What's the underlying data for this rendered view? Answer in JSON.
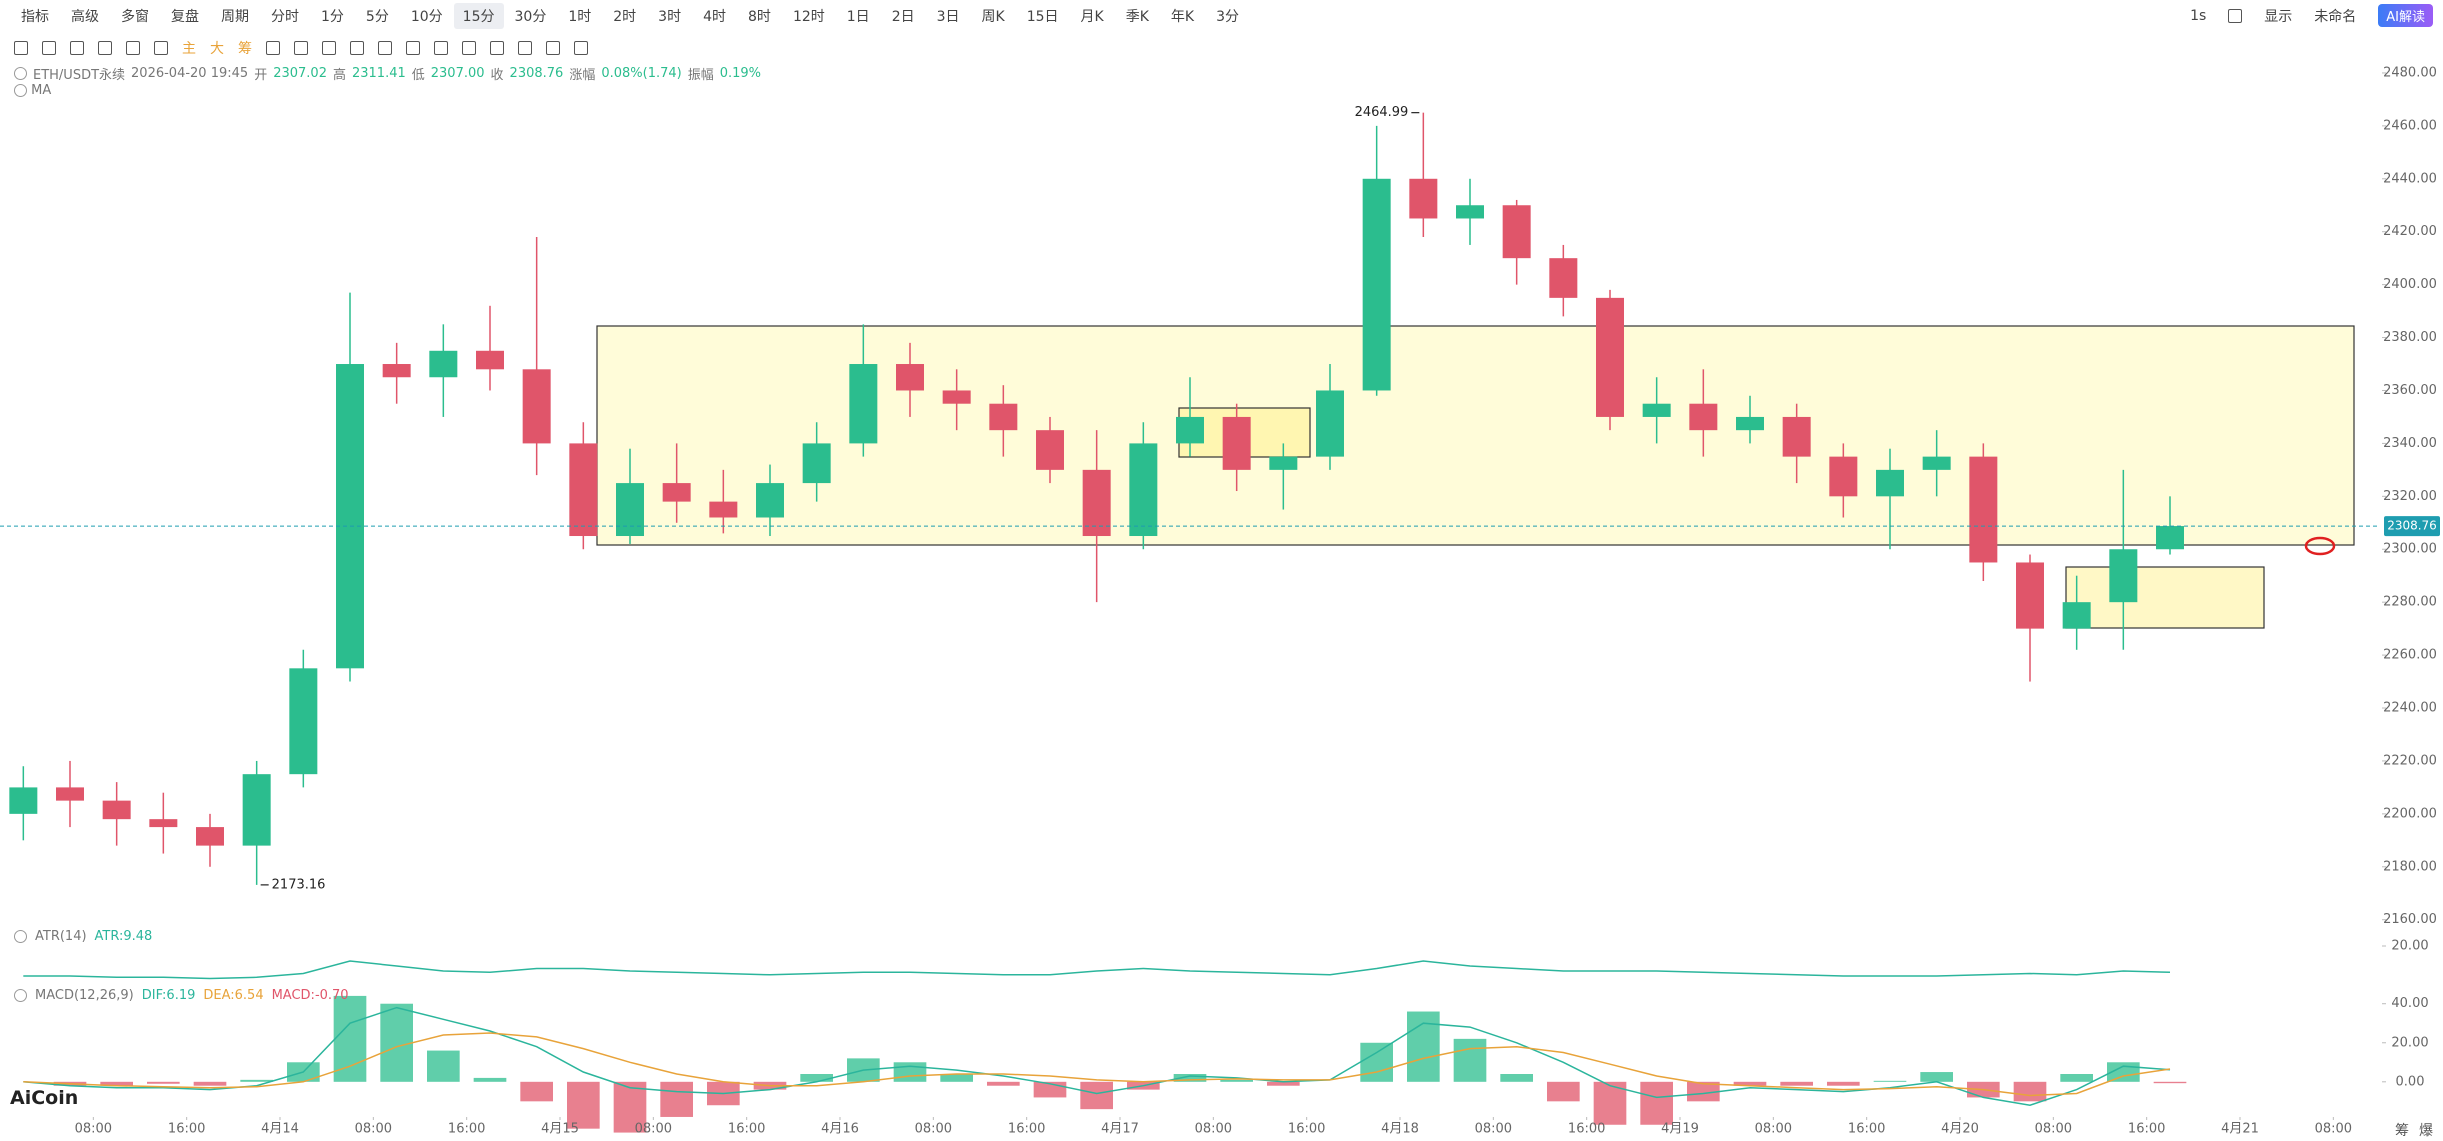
{
  "toolbar": {
    "left": [
      "指标",
      "高级",
      "多窗",
      "复盘"
    ],
    "period_label": "周期",
    "periods": [
      "分时",
      "1分",
      "5分",
      "10分",
      "15分",
      "30分",
      "1时",
      "2时",
      "3时",
      "4时",
      "8时",
      "12时",
      "1日",
      "2日",
      "3日",
      "周K",
      "15日",
      "月K",
      "季K",
      "年K",
      "3分"
    ],
    "active_period_index": 4,
    "right": [
      "1s",
      "显示"
    ],
    "workspace": "未命名",
    "ai_button": "AI解读"
  },
  "drawing_bar": {
    "marks": [
      "主",
      "大",
      "筹"
    ]
  },
  "info": {
    "symbol": "ETH/USDT永续",
    "time": "2026-04-20 19:45",
    "fields": [
      {
        "label": "开",
        "value": "2307.02"
      },
      {
        "label": "高",
        "value": "2311.41"
      },
      {
        "label": "低",
        "value": "2307.00"
      },
      {
        "label": "收",
        "value": "2308.76"
      },
      {
        "label": "涨幅",
        "value": "0.08%(1.74)"
      },
      {
        "label": "振幅",
        "value": "0.19%"
      }
    ],
    "ma_label": "MA"
  },
  "footer": {
    "brand": "AiCoin",
    "tabs": [
      "筹",
      "爆"
    ]
  },
  "chart_data": [
    {
      "type": "candlestick",
      "up_color": "#2bbd8e",
      "down_color": "#e0556a",
      "open": [
        2200,
        2210,
        2205,
        2198,
        2195,
        2188,
        2215,
        2255,
        2370,
        2365,
        2375,
        2368,
        2340,
        2305,
        2325,
        2318,
        2312,
        2325,
        2340,
        2370,
        2360,
        2355,
        2345,
        2330,
        2305,
        2340,
        2350,
        2330,
        2335,
        2360,
        2440,
        2425,
        2430,
        2410,
        2395,
        2350,
        2355,
        2345,
        2350,
        2335,
        2320,
        2330,
        2335,
        2295,
        2270,
        2280,
        2300
      ],
      "high": [
        2218,
        2220,
        2212,
        2208,
        2200,
        2220,
        2262,
        2397,
        2378,
        2385,
        2392,
        2418,
        2348,
        2338,
        2340,
        2330,
        2332,
        2348,
        2385,
        2378,
        2368,
        2362,
        2350,
        2345,
        2348,
        2365,
        2355,
        2340,
        2370,
        2460,
        2464.99,
        2440,
        2432,
        2415,
        2398,
        2365,
        2368,
        2358,
        2355,
        2340,
        2338,
        2345,
        2340,
        2298,
        2290,
        2330,
        2320
      ],
      "low": [
        2190,
        2195,
        2188,
        2185,
        2180,
        2173.16,
        2210,
        2250,
        2355,
        2350,
        2360,
        2328,
        2300,
        2302,
        2310,
        2306,
        2305,
        2318,
        2335,
        2350,
        2345,
        2335,
        2325,
        2280,
        2300,
        2335,
        2322,
        2315,
        2330,
        2358,
        2418,
        2415,
        2400,
        2388,
        2345,
        2340,
        2335,
        2340,
        2325,
        2312,
        2300,
        2320,
        2288,
        2250,
        2262,
        2262,
        2298
      ],
      "close": [
        2210,
        2205,
        2198,
        2195,
        2188,
        2215,
        2255,
        2370,
        2365,
        2375,
        2368,
        2340,
        2305,
        2325,
        2318,
        2312,
        2325,
        2340,
        2370,
        2360,
        2355,
        2345,
        2330,
        2305,
        2340,
        2350,
        2330,
        2335,
        2360,
        2440,
        2425,
        2430,
        2410,
        2395,
        2350,
        2355,
        2345,
        2350,
        2335,
        2320,
        2330,
        2335,
        2295,
        2270,
        2280,
        2300,
        2308.76
      ],
      "annotations": [
        2464.99,
        2173.16
      ],
      "last_price_color": "#1e9db0",
      "xlim": [
        0,
        51
      ],
      "ylim": [
        2158,
        2483
      ],
      "yticks": [
        {
          "value": 2160,
          "label": "2160.00"
        },
        {
          "value": 2180,
          "label": "2180.00"
        },
        {
          "value": 2200,
          "label": "2200.00"
        },
        {
          "value": 2220,
          "label": "2220.00"
        },
        {
          "value": 2240,
          "label": "2240.00"
        },
        {
          "value": 2260,
          "label": "2260.00"
        },
        {
          "value": 2280,
          "label": "2280.00"
        },
        {
          "value": 2300,
          "label": "2300.00"
        },
        {
          "value": 2320,
          "label": "2320.00"
        },
        {
          "value": 2340,
          "label": "2340.00"
        },
        {
          "value": 2360,
          "label": "2360.00"
        },
        {
          "value": 2380,
          "label": "2380.00"
        },
        {
          "value": 2400,
          "label": "2400.00"
        },
        {
          "value": 2420,
          "label": "2420.00"
        },
        {
          "value": 2440,
          "label": "2440.00"
        },
        {
          "value": 2460,
          "label": "2460.00"
        },
        {
          "value": 2480,
          "label": "2480.00"
        }
      ]
    },
    {
      "type": "line",
      "title": "ATR(14)",
      "readout": "ATR:9.48",
      "color": "#2bb59c",
      "values": [
        8,
        8,
        7.5,
        7.5,
        7,
        7.5,
        9,
        14,
        12,
        10,
        9.5,
        11,
        11,
        10,
        9.5,
        9,
        8.5,
        9,
        9.5,
        9.5,
        9,
        8.5,
        8.5,
        10,
        11,
        10,
        9.5,
        9,
        8.5,
        11,
        14,
        12,
        11,
        10,
        10,
        10,
        9.5,
        9,
        8.5,
        8,
        8,
        8,
        8.5,
        9,
        8.5,
        10,
        9.48
      ],
      "xlim": [
        0,
        51
      ],
      "ylim": [
        0,
        24
      ],
      "yticks": [
        {
          "value": 20,
          "label": "20.00"
        }
      ]
    },
    {
      "type": "macd",
      "title": "MACD(12,26,9)",
      "readouts": [
        "DIF:6.19",
        "DEA:6.54",
        "MACD:-0.70"
      ],
      "series": [
        {
          "color": "#2bb59c",
          "values": [
            0,
            -2,
            -3,
            -3,
            -4,
            -2,
            5,
            30,
            38,
            32,
            26,
            18,
            5,
            -3,
            -5,
            -6,
            -4,
            0,
            6,
            8,
            6,
            3,
            -1,
            -6,
            -2,
            3,
            2,
            0,
            1,
            15,
            30,
            28,
            20,
            10,
            -2,
            -8,
            -6,
            -3,
            -4,
            -5,
            -3,
            0,
            -8,
            -12,
            -4,
            8,
            6.19
          ]
        },
        {
          "color": "#e8a33a",
          "values": [
            0,
            -1,
            -2,
            -2.5,
            -3,
            -2.5,
            0,
            8,
            18,
            24,
            25,
            23,
            17,
            10,
            4,
            0,
            -2,
            -2,
            0,
            3,
            4,
            4,
            3,
            1,
            0,
            1,
            1.5,
            1,
            1,
            5,
            12,
            17,
            18,
            15,
            9,
            3,
            -1,
            -2,
            -3,
            -4,
            -3.5,
            -2.5,
            -4,
            -7,
            -6,
            3,
            6.54
          ]
        },
        {
          "up_color": "#2bbd8e",
          "down_color": "#e0556a",
          "values": [
            0,
            -2,
            -2,
            -1,
            -2,
            1,
            10,
            44,
            40,
            16,
            2,
            -10,
            -24,
            -26,
            -18,
            -12,
            -4,
            4,
            12,
            10,
            4,
            -2,
            -8,
            -14,
            -4,
            4,
            1,
            -2,
            0,
            20,
            36,
            22,
            4,
            -10,
            -22,
            -22,
            -10,
            -2,
            -2,
            -2,
            0.5,
            5,
            -8,
            -10,
            4,
            10,
            -0.7
          ]
        }
      ],
      "xlim": [
        0,
        51
      ],
      "ylim": [
        -17,
        46
      ],
      "yticks": [
        {
          "value": 0,
          "label": "0.00"
        },
        {
          "value": 20,
          "label": "20.00"
        },
        {
          "value": 40,
          "label": "40.00"
        }
      ],
      "xticks": [
        {
          "value": 2,
          "label": "08:00"
        },
        {
          "value": 4,
          "label": "16:00"
        },
        {
          "value": 6,
          "label": "4月14"
        },
        {
          "value": 8,
          "label": "08:00"
        },
        {
          "value": 10,
          "label": "16:00"
        },
        {
          "value": 12,
          "label": "4月15"
        },
        {
          "value": 14,
          "label": "08:00"
        },
        {
          "value": 16,
          "label": "16:00"
        },
        {
          "value": 18,
          "label": "4月16"
        },
        {
          "value": 20,
          "label": "08:00"
        },
        {
          "value": 22,
          "label": "16:00"
        },
        {
          "value": 24,
          "label": "4月17"
        },
        {
          "value": 26,
          "label": "08:00"
        },
        {
          "value": 28,
          "label": "16:00"
        },
        {
          "value": 30,
          "label": "4月18"
        },
        {
          "value": 32,
          "label": "08:00"
        },
        {
          "value": 34,
          "label": "16:00"
        },
        {
          "value": 36,
          "label": "4月19"
        },
        {
          "value": 38,
          "label": "08:00"
        },
        {
          "value": 40,
          "label": "16:00"
        },
        {
          "value": 42,
          "label": "4月20"
        },
        {
          "value": 44,
          "label": "08:00"
        },
        {
          "value": 46,
          "label": "16:00"
        },
        {
          "value": 48,
          "label": "4月21"
        },
        {
          "value": 50,
          "label": "08:00"
        }
      ]
    }
  ]
}
